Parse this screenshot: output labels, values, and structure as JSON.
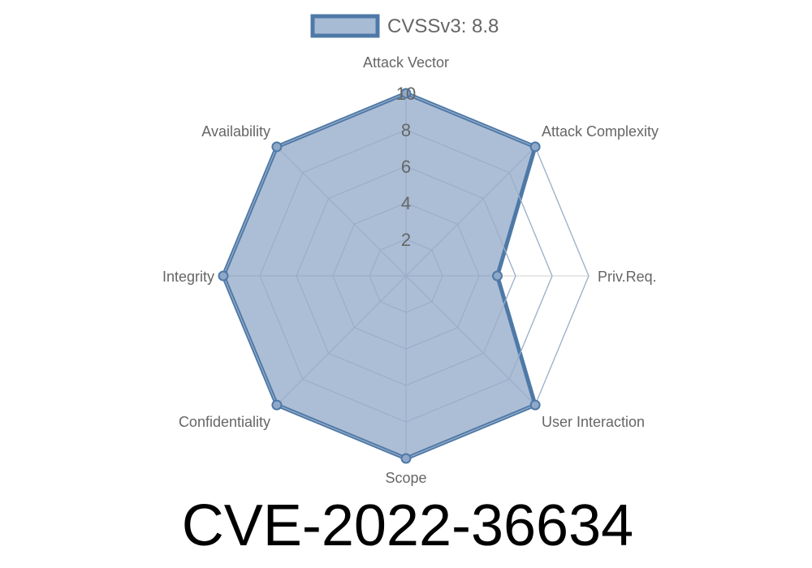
{
  "chart_data": {
    "type": "radar",
    "legend": {
      "label": "CVSSv3: 8.8",
      "placement": "top"
    },
    "axes": [
      "Attack Vector",
      "Attack Complexity",
      "Priv.Req.",
      "User Interaction",
      "Scope",
      "Confidentiality",
      "Integrity",
      "Availability"
    ],
    "series": [
      {
        "name": "CVSSv3: 8.8",
        "values": [
          10,
          10,
          5,
          10,
          10,
          10,
          10,
          10
        ]
      }
    ],
    "range": [
      0,
      10
    ],
    "ticks": [
      "2",
      "4",
      "6",
      "8",
      "10"
    ],
    "grid": true,
    "colors": {
      "line": "#4e79a7",
      "fill": "#a8bbd4",
      "grid": "#e0e0e0"
    }
  },
  "title": "CVE-2022-36634"
}
